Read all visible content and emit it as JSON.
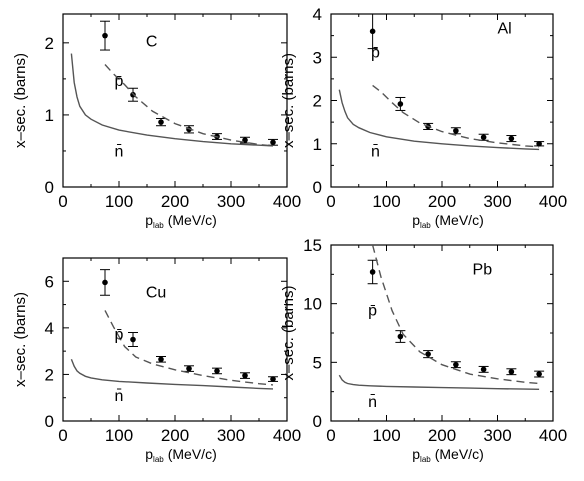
{
  "chart_data": [
    {
      "type": "scatter",
      "panel": "C",
      "xlabel_main": "p",
      "xlabel_sub": "lab",
      "xlabel_unit": "(MeV/c)",
      "ylabel": "x–sec. (barns)",
      "xlim": [
        0,
        400
      ],
      "ylim": [
        0,
        2.4
      ],
      "xticks": [
        0,
        100,
        200,
        300,
        400
      ],
      "yticks": [
        0,
        1,
        2
      ],
      "grid": false,
      "series": [
        {
          "name": "p̄",
          "kind": "points",
          "x": [
            75,
            125,
            175,
            225,
            275,
            325,
            375
          ],
          "y": [
            2.1,
            1.28,
            0.9,
            0.8,
            0.7,
            0.65,
            0.62
          ],
          "err": [
            0.2,
            0.09,
            0.05,
            0.05,
            0.04,
            0.04,
            0.04
          ]
        },
        {
          "name": "p̄",
          "kind": "dashed",
          "x": [
            75,
            90,
            110,
            130,
            160,
            200,
            250,
            300,
            350,
            375
          ],
          "y": [
            1.7,
            1.57,
            1.42,
            1.25,
            1.05,
            0.88,
            0.74,
            0.65,
            0.59,
            0.57
          ]
        },
        {
          "name": "n̄",
          "kind": "solid",
          "x": [
            15,
            20,
            25,
            30,
            40,
            50,
            70,
            100,
            150,
            200,
            250,
            300,
            350,
            375
          ],
          "y": [
            1.85,
            1.45,
            1.25,
            1.12,
            1.0,
            0.94,
            0.86,
            0.79,
            0.72,
            0.67,
            0.63,
            0.6,
            0.58,
            0.57
          ]
        }
      ],
      "labels": {
        "panel": "C",
        "dashed": "p̄",
        "solid": "n̄"
      }
    },
    {
      "type": "scatter",
      "panel": "Al",
      "xlabel_main": "p",
      "xlabel_sub": "lab",
      "xlabel_unit": "(MeV/c)",
      "ylabel": "x–sec. (barns)",
      "xlim": [
        0,
        400
      ],
      "ylim": [
        0,
        4
      ],
      "xticks": [
        0,
        100,
        200,
        300,
        400
      ],
      "yticks": [
        0,
        1,
        2,
        3,
        4
      ],
      "grid": false,
      "series": [
        {
          "name": "p̄",
          "kind": "points",
          "x": [
            75,
            125,
            175,
            225,
            275,
            325,
            375
          ],
          "y": [
            3.6,
            1.92,
            1.4,
            1.3,
            1.15,
            1.12,
            1.0
          ],
          "err": [
            0.4,
            0.15,
            0.07,
            0.07,
            0.07,
            0.07,
            0.05
          ]
        },
        {
          "name": "p̄",
          "kind": "dashed",
          "x": [
            75,
            90,
            110,
            130,
            160,
            200,
            250,
            300,
            350,
            375
          ],
          "y": [
            2.35,
            2.2,
            1.95,
            1.72,
            1.48,
            1.28,
            1.12,
            1.02,
            0.95,
            0.93
          ]
        },
        {
          "name": "n̄",
          "kind": "solid",
          "x": [
            15,
            20,
            25,
            30,
            40,
            50,
            70,
            100,
            150,
            200,
            250,
            300,
            350,
            375
          ],
          "y": [
            2.25,
            1.95,
            1.75,
            1.6,
            1.45,
            1.37,
            1.26,
            1.16,
            1.06,
            1.0,
            0.95,
            0.91,
            0.88,
            0.87
          ]
        }
      ],
      "labels": {
        "panel": "Al",
        "dashed": "p̄",
        "solid": "n̄"
      }
    },
    {
      "type": "scatter",
      "panel": "Cu",
      "xlabel_main": "p",
      "xlabel_sub": "lab",
      "xlabel_unit": "(MeV/c)",
      "ylabel": "x–sec. (barns)",
      "xlim": [
        0,
        400
      ],
      "ylim": [
        0,
        7
      ],
      "xticks": [
        0,
        100,
        200,
        300,
        400
      ],
      "yticks": [
        0,
        2,
        4,
        6
      ],
      "grid": false,
      "series": [
        {
          "name": "p̄",
          "kind": "points",
          "x": [
            75,
            125,
            175,
            225,
            275,
            325,
            375
          ],
          "y": [
            5.95,
            3.5,
            2.65,
            2.25,
            2.15,
            1.95,
            1.8
          ],
          "err": [
            0.55,
            0.3,
            0.12,
            0.12,
            0.12,
            0.12,
            0.1
          ]
        },
        {
          "name": "p̄",
          "kind": "dashed",
          "x": [
            75,
            90,
            110,
            130,
            160,
            200,
            250,
            300,
            350,
            375
          ],
          "y": [
            4.75,
            4.05,
            3.2,
            2.75,
            2.45,
            2.2,
            1.95,
            1.75,
            1.6,
            1.55
          ]
        },
        {
          "name": "n̄",
          "kind": "solid",
          "x": [
            15,
            20,
            25,
            30,
            40,
            50,
            70,
            100,
            150,
            200,
            250,
            300,
            350,
            375
          ],
          "y": [
            2.65,
            2.35,
            2.15,
            2.05,
            1.92,
            1.85,
            1.77,
            1.7,
            1.63,
            1.57,
            1.52,
            1.46,
            1.4,
            1.38
          ]
        }
      ],
      "labels": {
        "panel": "Cu",
        "dashed": "p̄",
        "solid": "n̄"
      }
    },
    {
      "type": "scatter",
      "panel": "Pb",
      "xlabel_main": "p",
      "xlabel_sub": "lab",
      "xlabel_unit": "(MeV/c)",
      "ylabel": "x–sec. (barns)",
      "xlim": [
        0,
        400
      ],
      "ylim": [
        0,
        15
      ],
      "xticks": [
        0,
        100,
        200,
        300,
        400
      ],
      "yticks": [
        0,
        5,
        10,
        15
      ],
      "grid": false,
      "series": [
        {
          "name": "p̄",
          "kind": "points",
          "x": [
            75,
            125,
            175,
            225,
            275,
            325,
            375
          ],
          "y": [
            12.7,
            7.2,
            5.7,
            4.8,
            4.4,
            4.2,
            4.0
          ],
          "err": [
            1.0,
            0.5,
            0.3,
            0.25,
            0.25,
            0.25,
            0.25
          ]
        },
        {
          "name": "p̄",
          "kind": "dashed",
          "x": [
            75,
            90,
            110,
            130,
            160,
            200,
            250,
            300,
            350,
            375
          ],
          "y": [
            15.0,
            12.3,
            9.4,
            7.4,
            5.9,
            4.8,
            4.0,
            3.6,
            3.3,
            3.2
          ]
        },
        {
          "name": "n̄",
          "kind": "solid",
          "x": [
            15,
            20,
            25,
            30,
            40,
            50,
            70,
            100,
            150,
            200,
            250,
            300,
            350,
            375
          ],
          "y": [
            3.9,
            3.5,
            3.3,
            3.2,
            3.1,
            3.05,
            3.0,
            2.95,
            2.9,
            2.85,
            2.8,
            2.75,
            2.72,
            2.7
          ]
        }
      ],
      "labels": {
        "panel": "Pb",
        "dashed": "p̄",
        "solid": "n̄"
      }
    }
  ]
}
